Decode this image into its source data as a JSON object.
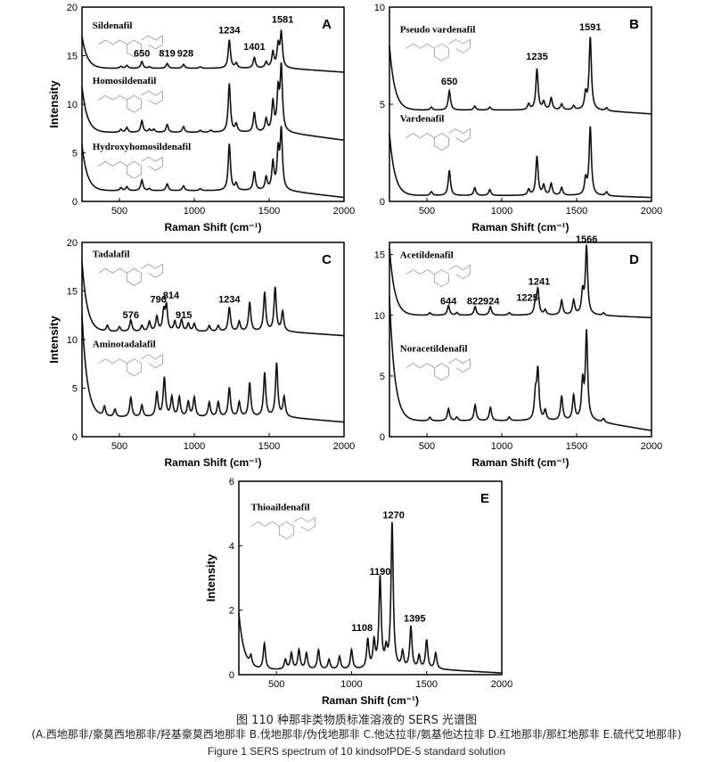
{
  "caption": {
    "cn_title": "图 110 种那非类物质标准溶液的 SERS 光谱图",
    "cn_sub": "(A.西地那非/豪莫西地那非/羟基豪莫西地那非  B.伐地那非/伪伐地那非  C.他达拉非/氨基他达拉非  D.红地那非/那红地那非  E.硫代艾地那非)",
    "en_title": "Figure 1 SERS spectrum of 10 kindsofPDE-5 standard solution"
  },
  "chart_data": [
    {
      "type": "line",
      "panel": "A",
      "xlabel": "Raman Shift (cm⁻¹)",
      "ylabel": "Intensity",
      "xlim": [
        250,
        2000
      ],
      "ylim": [
        0,
        20
      ],
      "xticks": [
        500,
        1000,
        1500,
        2000
      ],
      "yticks": [
        0,
        5,
        10,
        15,
        20
      ],
      "series": [
        {
          "name": "Sildenafil",
          "label_y": 17.8,
          "base": 13.7,
          "end": 13.3,
          "start": 17.0,
          "peaks": [
            [
              510,
              0.2
            ],
            [
              550,
              0.3
            ],
            [
              650,
              0.7
            ],
            [
              700,
              0.15
            ],
            [
              819,
              0.5
            ],
            [
              928,
              0.4
            ],
            [
              1040,
              0.15
            ],
            [
              1234,
              2.9
            ],
            [
              1280,
              0.5
            ],
            [
              1401,
              1.1
            ],
            [
              1480,
              0.6
            ],
            [
              1525,
              1.6
            ],
            [
              1560,
              2.2
            ],
            [
              1581,
              3.5
            ]
          ]
        },
        {
          "name": "Homosildenafil",
          "label_y": 12.1,
          "base": 7.1,
          "end": 6.3,
          "start": 11.8,
          "peaks": [
            [
              510,
              0.3
            ],
            [
              550,
              0.5
            ],
            [
              650,
              1.2
            ],
            [
              700,
              0.3
            ],
            [
              730,
              0.3
            ],
            [
              819,
              0.8
            ],
            [
              928,
              0.6
            ],
            [
              1040,
              0.2
            ],
            [
              1110,
              0.2
            ],
            [
              1234,
              5.0
            ],
            [
              1280,
              0.8
            ],
            [
              1401,
              2.0
            ],
            [
              1480,
              1.3
            ],
            [
              1525,
              3.0
            ],
            [
              1560,
              4.0
            ],
            [
              1581,
              6.5
            ]
          ]
        },
        {
          "name": "Hydroxyhomosildenafil",
          "label_y": 5.3,
          "base": 1.1,
          "end": 0.4,
          "start": 5.8,
          "peaks": [
            [
              510,
              0.3
            ],
            [
              550,
              0.4
            ],
            [
              650,
              1.1
            ],
            [
              700,
              0.2
            ],
            [
              819,
              0.7
            ],
            [
              928,
              0.5
            ],
            [
              1040,
              0.2
            ],
            [
              1234,
              4.8
            ],
            [
              1280,
              0.7
            ],
            [
              1401,
              1.9
            ],
            [
              1480,
              1.3
            ],
            [
              1525,
              2.8
            ],
            [
              1560,
              3.8
            ],
            [
              1581,
              6.0
            ]
          ]
        }
      ],
      "annotations": [
        {
          "text": "650",
          "x": 650,
          "y": 14.9
        },
        {
          "text": "819",
          "x": 819,
          "y": 14.9
        },
        {
          "text": "928",
          "x": 940,
          "y": 14.9
        },
        {
          "text": "1234",
          "x": 1234,
          "y": 17.3
        },
        {
          "text": "1401",
          "x": 1401,
          "y": 15.6
        },
        {
          "text": "1581",
          "x": 1590,
          "y": 18.4
        }
      ]
    },
    {
      "type": "line",
      "panel": "B",
      "xlabel": "Raman Shift (cm⁻¹)",
      "ylabel": "",
      "xlim": [
        250,
        2000
      ],
      "ylim": [
        0,
        10
      ],
      "xticks": [
        500,
        1000,
        1500,
        2000
      ],
      "yticks": [
        0,
        5,
        10
      ],
      "series": [
        {
          "name": "Pseudo vardenafil",
          "label_y": 8.7,
          "base": 4.7,
          "end": 4.5,
          "start": 8.0,
          "peaks": [
            [
              530,
              0.15
            ],
            [
              650,
              1.0
            ],
            [
              820,
              0.2
            ],
            [
              920,
              0.15
            ],
            [
              1180,
              0.3
            ],
            [
              1235,
              2.1
            ],
            [
              1280,
              0.4
            ],
            [
              1330,
              0.6
            ],
            [
              1400,
              0.3
            ],
            [
              1480,
              0.2
            ],
            [
              1560,
              0.8
            ],
            [
              1591,
              3.7
            ],
            [
              1700,
              0.15
            ]
          ]
        },
        {
          "name": "Vardenafil",
          "label_y": 4.1,
          "base": 0.3,
          "end": 0.2,
          "start": 3.5,
          "peaks": [
            [
              530,
              0.2
            ],
            [
              650,
              1.3
            ],
            [
              820,
              0.4
            ],
            [
              920,
              0.3
            ],
            [
              1180,
              0.3
            ],
            [
              1235,
              2.0
            ],
            [
              1280,
              0.5
            ],
            [
              1330,
              0.6
            ],
            [
              1400,
              0.4
            ],
            [
              1560,
              0.8
            ],
            [
              1591,
              3.5
            ],
            [
              1700,
              0.2
            ]
          ]
        }
      ],
      "annotations": [
        {
          "text": "650",
          "x": 650,
          "y": 6.0
        },
        {
          "text": "1235",
          "x": 1235,
          "y": 7.3
        },
        {
          "text": "1591",
          "x": 1591,
          "y": 8.8
        }
      ]
    },
    {
      "type": "line",
      "panel": "C",
      "xlabel": "Raman Shift (cm⁻¹)",
      "ylabel": "Intensity",
      "xlim": [
        250,
        2000
      ],
      "ylim": [
        0,
        20
      ],
      "xticks": [
        500,
        1000,
        1500,
        2000
      ],
      "yticks": [
        0,
        5,
        10,
        15,
        20
      ],
      "series": [
        {
          "name": "Tadalafil",
          "label_y": 18.5,
          "base": 10.8,
          "end": 10.4,
          "start": 18.0,
          "peaks": [
            [
              420,
              0.6
            ],
            [
              500,
              0.5
            ],
            [
              576,
              1.2
            ],
            [
              650,
              0.6
            ],
            [
              700,
              1.0
            ],
            [
              750,
              1.5
            ],
            [
              796,
              2.0
            ],
            [
              814,
              2.5
            ],
            [
              870,
              1.0
            ],
            [
              915,
              1.2
            ],
            [
              960,
              0.8
            ],
            [
              1000,
              0.8
            ],
            [
              1100,
              0.6
            ],
            [
              1160,
              0.6
            ],
            [
              1234,
              2.5
            ],
            [
              1300,
              1.0
            ],
            [
              1370,
              3.0
            ],
            [
              1470,
              4.0
            ],
            [
              1540,
              4.5
            ],
            [
              1590,
              2.0
            ]
          ]
        },
        {
          "name": "Aminotadalafil",
          "label_y": 9.2,
          "base": 2.0,
          "end": 1.5,
          "start": 12.5,
          "peaks": [
            [
              400,
              1.0
            ],
            [
              470,
              0.8
            ],
            [
              576,
              2.0
            ],
            [
              650,
              1.2
            ],
            [
              750,
              2.5
            ],
            [
              800,
              4.0
            ],
            [
              850,
              2.0
            ],
            [
              900,
              2.0
            ],
            [
              960,
              1.5
            ],
            [
              1000,
              2.0
            ],
            [
              1100,
              1.5
            ],
            [
              1160,
              1.5
            ],
            [
              1234,
              3.0
            ],
            [
              1300,
              1.5
            ],
            [
              1370,
              3.5
            ],
            [
              1470,
              4.5
            ],
            [
              1550,
              5.5
            ],
            [
              1600,
              2.0
            ]
          ]
        }
      ],
      "annotations": [
        {
          "text": "576",
          "x": 576,
          "y": 12.2
        },
        {
          "text": "796",
          "x": 760,
          "y": 13.8
        },
        {
          "text": "814",
          "x": 845,
          "y": 14.2
        },
        {
          "text": "915",
          "x": 930,
          "y": 12.2
        },
        {
          "text": "1234",
          "x": 1234,
          "y": 13.8
        }
      ]
    },
    {
      "type": "line",
      "panel": "D",
      "xlabel": "Raman Shift (cm⁻¹)",
      "ylabel": "",
      "xlim": [
        250,
        2000
      ],
      "ylim": [
        0,
        16
      ],
      "xticks": [
        500,
        1000,
        1500,
        2000
      ],
      "yticks": [
        0,
        5,
        10,
        15
      ],
      "series": [
        {
          "name": "Acetildenafil",
          "label_y": 14.7,
          "base": 10.0,
          "end": 9.8,
          "start": 15.5,
          "peaks": [
            [
              520,
              0.2
            ],
            [
              644,
              0.8
            ],
            [
              700,
              0.2
            ],
            [
              822,
              0.7
            ],
            [
              924,
              0.7
            ],
            [
              1050,
              0.2
            ],
            [
              1225,
              1.0
            ],
            [
              1241,
              2.0
            ],
            [
              1290,
              0.4
            ],
            [
              1400,
              1.2
            ],
            [
              1480,
              1.2
            ],
            [
              1540,
              1.8
            ],
            [
              1566,
              5.6
            ],
            [
              1680,
              0.2
            ]
          ]
        },
        {
          "name": "Noracetildenafil",
          "label_y": 7.0,
          "base": 1.3,
          "end": 0.5,
          "start": 11.5,
          "peaks": [
            [
              520,
              0.3
            ],
            [
              644,
              1.0
            ],
            [
              700,
              0.3
            ],
            [
              822,
              1.3
            ],
            [
              924,
              1.1
            ],
            [
              1050,
              0.3
            ],
            [
              1225,
              2.0
            ],
            [
              1241,
              4.0
            ],
            [
              1290,
              0.8
            ],
            [
              1400,
              2.0
            ],
            [
              1480,
              2.0
            ],
            [
              1540,
              3.0
            ],
            [
              1566,
              7.2
            ],
            [
              1680,
              0.3
            ]
          ]
        }
      ],
      "annotations": [
        {
          "text": "644",
          "x": 644,
          "y": 10.9
        },
        {
          "text": "822",
          "x": 822,
          "y": 10.9
        },
        {
          "text": "924",
          "x": 930,
          "y": 10.9
        },
        {
          "text": "1225",
          "x": 1170,
          "y": 11.2
        },
        {
          "text": "1241",
          "x": 1250,
          "y": 12.5
        },
        {
          "text": "1566",
          "x": 1566,
          "y": 16.0
        }
      ]
    },
    {
      "type": "line",
      "panel": "E",
      "xlabel": "Raman Shift (cm⁻¹)",
      "ylabel": "Intensity",
      "xlim": [
        250,
        2000
      ],
      "ylim": [
        0,
        6
      ],
      "xticks": [
        500,
        1000,
        1500,
        2000
      ],
      "yticks": [
        0,
        2,
        4,
        6
      ],
      "series": [
        {
          "name": "Thioaildenafil",
          "label_y": 5.1,
          "base": 0.15,
          "end": 0.05,
          "start": 1.9,
          "peaks": [
            [
              330,
              0.3
            ],
            [
              420,
              0.8
            ],
            [
              560,
              0.3
            ],
            [
              600,
              0.5
            ],
            [
              650,
              0.6
            ],
            [
              700,
              0.5
            ],
            [
              780,
              0.6
            ],
            [
              850,
              0.3
            ],
            [
              920,
              0.4
            ],
            [
              1000,
              0.6
            ],
            [
              1108,
              0.9
            ],
            [
              1150,
              0.8
            ],
            [
              1190,
              2.8
            ],
            [
              1230,
              0.5
            ],
            [
              1270,
              4.5
            ],
            [
              1340,
              0.5
            ],
            [
              1395,
              1.3
            ],
            [
              1450,
              0.4
            ],
            [
              1500,
              0.9
            ],
            [
              1560,
              0.5
            ]
          ]
        }
      ],
      "annotations": [
        {
          "text": "1108",
          "x": 1070,
          "y": 1.35
        },
        {
          "text": "1190",
          "x": 1190,
          "y": 3.1
        },
        {
          "text": "1270",
          "x": 1280,
          "y": 4.85
        },
        {
          "text": "1395",
          "x": 1420,
          "y": 1.65
        }
      ]
    }
  ]
}
